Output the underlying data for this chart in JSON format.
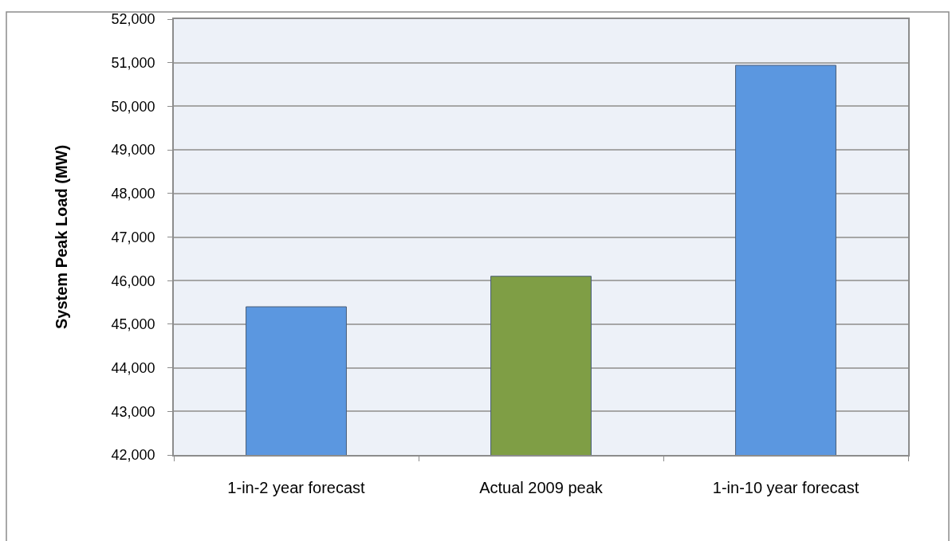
{
  "chart_data": {
    "type": "bar",
    "ylabel": "System Peak Load (MW)",
    "categories": [
      "1-in-2 year forecast",
      "Actual 2009 peak",
      "1-in-10 year forecast"
    ],
    "values": [
      45400,
      46100,
      50940
    ],
    "colors": [
      "#5b97e0",
      "#7f9e45",
      "#5b97e0"
    ],
    "ylim": [
      42000,
      52000
    ],
    "yticks": [
      {
        "value": 42000,
        "label": "42,000"
      },
      {
        "value": 43000,
        "label": "43,000"
      },
      {
        "value": 44000,
        "label": "44,000"
      },
      {
        "value": 45000,
        "label": "45,000"
      },
      {
        "value": 46000,
        "label": "46,000"
      },
      {
        "value": 47000,
        "label": "47,000"
      },
      {
        "value": 48000,
        "label": "48,000"
      },
      {
        "value": 49000,
        "label": "49,000"
      },
      {
        "value": 50000,
        "label": "50,000"
      },
      {
        "value": 51000,
        "label": "51,000"
      },
      {
        "value": 52000,
        "label": "52,000"
      }
    ],
    "grid": "y"
  }
}
